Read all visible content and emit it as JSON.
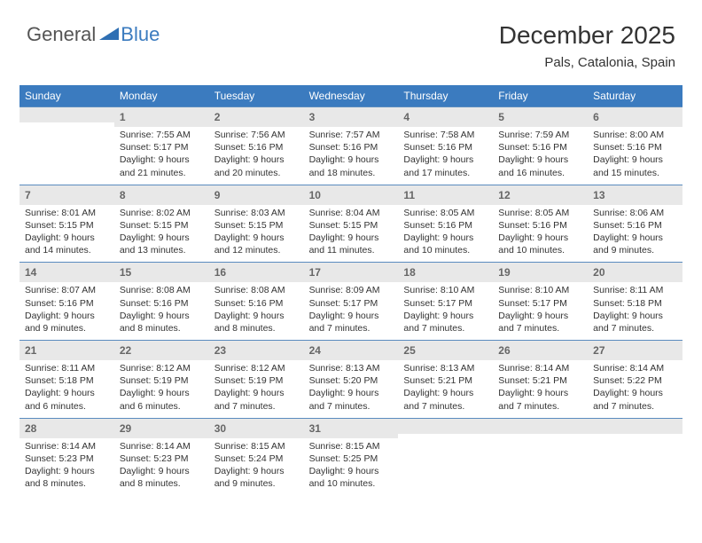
{
  "logo": {
    "text1": "General",
    "text2": "Blue"
  },
  "title": "December 2025",
  "subtitle": "Pals, Catalonia, Spain",
  "colors": {
    "header_bg": "#3b7bbf",
    "header_text": "#ffffff",
    "daynum_bg": "#e8e8e8",
    "daynum_text": "#666666",
    "info_text": "#333333",
    "row_border": "#5a8bbf",
    "logo_blue": "#3b7bbf",
    "logo_gray": "#555555"
  },
  "typography": {
    "title_fontsize": 28,
    "subtitle_fontsize": 15,
    "dow_fontsize": 12,
    "daynum_fontsize": 12,
    "info_fontsize": 10.5
  },
  "days_of_week": [
    "Sunday",
    "Monday",
    "Tuesday",
    "Wednesday",
    "Thursday",
    "Friday",
    "Saturday"
  ],
  "first_weekday_index": 1,
  "num_days": 31,
  "cells": [
    {
      "day": 1,
      "sunrise": "7:55 AM",
      "sunset": "5:17 PM",
      "daylight": "9 hours and 21 minutes."
    },
    {
      "day": 2,
      "sunrise": "7:56 AM",
      "sunset": "5:16 PM",
      "daylight": "9 hours and 20 minutes."
    },
    {
      "day": 3,
      "sunrise": "7:57 AM",
      "sunset": "5:16 PM",
      "daylight": "9 hours and 18 minutes."
    },
    {
      "day": 4,
      "sunrise": "7:58 AM",
      "sunset": "5:16 PM",
      "daylight": "9 hours and 17 minutes."
    },
    {
      "day": 5,
      "sunrise": "7:59 AM",
      "sunset": "5:16 PM",
      "daylight": "9 hours and 16 minutes."
    },
    {
      "day": 6,
      "sunrise": "8:00 AM",
      "sunset": "5:16 PM",
      "daylight": "9 hours and 15 minutes."
    },
    {
      "day": 7,
      "sunrise": "8:01 AM",
      "sunset": "5:15 PM",
      "daylight": "9 hours and 14 minutes."
    },
    {
      "day": 8,
      "sunrise": "8:02 AM",
      "sunset": "5:15 PM",
      "daylight": "9 hours and 13 minutes."
    },
    {
      "day": 9,
      "sunrise": "8:03 AM",
      "sunset": "5:15 PM",
      "daylight": "9 hours and 12 minutes."
    },
    {
      "day": 10,
      "sunrise": "8:04 AM",
      "sunset": "5:15 PM",
      "daylight": "9 hours and 11 minutes."
    },
    {
      "day": 11,
      "sunrise": "8:05 AM",
      "sunset": "5:16 PM",
      "daylight": "9 hours and 10 minutes."
    },
    {
      "day": 12,
      "sunrise": "8:05 AM",
      "sunset": "5:16 PM",
      "daylight": "9 hours and 10 minutes."
    },
    {
      "day": 13,
      "sunrise": "8:06 AM",
      "sunset": "5:16 PM",
      "daylight": "9 hours and 9 minutes."
    },
    {
      "day": 14,
      "sunrise": "8:07 AM",
      "sunset": "5:16 PM",
      "daylight": "9 hours and 9 minutes."
    },
    {
      "day": 15,
      "sunrise": "8:08 AM",
      "sunset": "5:16 PM",
      "daylight": "9 hours and 8 minutes."
    },
    {
      "day": 16,
      "sunrise": "8:08 AM",
      "sunset": "5:16 PM",
      "daylight": "9 hours and 8 minutes."
    },
    {
      "day": 17,
      "sunrise": "8:09 AM",
      "sunset": "5:17 PM",
      "daylight": "9 hours and 7 minutes."
    },
    {
      "day": 18,
      "sunrise": "8:10 AM",
      "sunset": "5:17 PM",
      "daylight": "9 hours and 7 minutes."
    },
    {
      "day": 19,
      "sunrise": "8:10 AM",
      "sunset": "5:17 PM",
      "daylight": "9 hours and 7 minutes."
    },
    {
      "day": 20,
      "sunrise": "8:11 AM",
      "sunset": "5:18 PM",
      "daylight": "9 hours and 7 minutes."
    },
    {
      "day": 21,
      "sunrise": "8:11 AM",
      "sunset": "5:18 PM",
      "daylight": "9 hours and 6 minutes."
    },
    {
      "day": 22,
      "sunrise": "8:12 AM",
      "sunset": "5:19 PM",
      "daylight": "9 hours and 6 minutes."
    },
    {
      "day": 23,
      "sunrise": "8:12 AM",
      "sunset": "5:19 PM",
      "daylight": "9 hours and 7 minutes."
    },
    {
      "day": 24,
      "sunrise": "8:13 AM",
      "sunset": "5:20 PM",
      "daylight": "9 hours and 7 minutes."
    },
    {
      "day": 25,
      "sunrise": "8:13 AM",
      "sunset": "5:21 PM",
      "daylight": "9 hours and 7 minutes."
    },
    {
      "day": 26,
      "sunrise": "8:14 AM",
      "sunset": "5:21 PM",
      "daylight": "9 hours and 7 minutes."
    },
    {
      "day": 27,
      "sunrise": "8:14 AM",
      "sunset": "5:22 PM",
      "daylight": "9 hours and 7 minutes."
    },
    {
      "day": 28,
      "sunrise": "8:14 AM",
      "sunset": "5:23 PM",
      "daylight": "9 hours and 8 minutes."
    },
    {
      "day": 29,
      "sunrise": "8:14 AM",
      "sunset": "5:23 PM",
      "daylight": "9 hours and 8 minutes."
    },
    {
      "day": 30,
      "sunrise": "8:15 AM",
      "sunset": "5:24 PM",
      "daylight": "9 hours and 9 minutes."
    },
    {
      "day": 31,
      "sunrise": "8:15 AM",
      "sunset": "5:25 PM",
      "daylight": "9 hours and 10 minutes."
    }
  ],
  "labels": {
    "sunrise": "Sunrise:",
    "sunset": "Sunset:",
    "daylight": "Daylight:"
  }
}
